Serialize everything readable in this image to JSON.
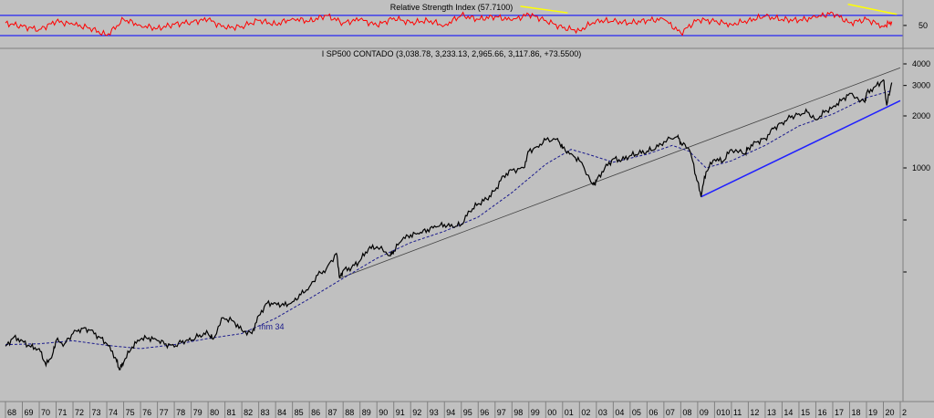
{
  "chart_data": [
    {
      "type": "line",
      "title": "Relative Strength Index (57.7100)",
      "yticks": [
        50
      ],
      "reference_levels": [
        70,
        30
      ],
      "ylim": [
        10,
        95
      ],
      "colors": {
        "line": "#ff0000",
        "levels": "#0000ff",
        "trend": "#ffff00"
      },
      "x": [
        1968,
        1969,
        1970,
        1971,
        1972,
        1973,
        1974,
        1975,
        1976,
        1977,
        1978,
        1979,
        1980,
        1981,
        1982,
        1983,
        1984,
        1985,
        1986,
        1987,
        1988,
        1989,
        1990,
        1991,
        1992,
        1993,
        1994,
        1995,
        1996,
        1997,
        1998,
        1999,
        2000,
        2001,
        2002,
        2003,
        2004,
        2005,
        2006,
        2007,
        2008,
        2009,
        2010,
        2011,
        2012,
        2013,
        2014,
        2015,
        2016,
        2017,
        2018,
        2019,
        2020,
        2020.5
      ],
      "values": [
        55,
        48,
        42,
        58,
        52,
        45,
        30,
        62,
        50,
        44,
        52,
        57,
        62,
        45,
        48,
        60,
        52,
        64,
        58,
        70,
        55,
        62,
        50,
        65,
        55,
        60,
        50,
        70,
        62,
        68,
        60,
        72,
        60,
        45,
        40,
        60,
        58,
        55,
        60,
        62,
        35,
        62,
        58,
        52,
        60,
        68,
        62,
        60,
        66,
        75,
        55,
        62,
        48,
        57.71
      ]
    },
    {
      "type": "line",
      "title": "I SP500 CONTADO (3,038.78, 3,233.13, 2,965.66, 3,117.86, +73.5500)",
      "yscale": "log",
      "yticks": [
        4000,
        3000,
        2000,
        1000
      ],
      "xtick_labels": [
        "68",
        "69",
        "70",
        "71",
        "72",
        "73",
        "74",
        "75",
        "76",
        "77",
        "78",
        "79",
        "80",
        "81",
        "82",
        "83",
        "84",
        "85",
        "86",
        "87",
        "88",
        "89",
        "90",
        "91",
        "92",
        "93",
        "94",
        "95",
        "96",
        "97",
        "98",
        "99",
        "00",
        "01",
        "02",
        "03",
        "04",
        "05",
        "06",
        "07",
        "08",
        "09",
        "010",
        "11",
        "12",
        "13",
        "14",
        "15",
        "16",
        "17",
        "18",
        "19",
        "20",
        "2"
      ],
      "annotations": [
        "mm 34"
      ],
      "colors": {
        "price": "#000000",
        "ma": "#1a1a8c",
        "support": "#2020ff",
        "resistance": "#404040"
      },
      "series": [
        {
          "name": "I SP500 CONTADO",
          "x": [
            1968,
            1968.5,
            1969,
            1969.5,
            1970,
            1970.4,
            1970.8,
            1971,
            1971.5,
            1972,
            1972.5,
            1973,
            1973.5,
            1974,
            1974.5,
            1974.75,
            1975,
            1975.5,
            1976,
            1976.5,
            1977,
            1977.5,
            1978,
            1978.5,
            1979,
            1979.5,
            1980,
            1980.3,
            1980.9,
            1981.5,
            1982,
            1982.6,
            1983,
            1983.5,
            1984,
            1984.5,
            1985,
            1985.5,
            1986,
            1986.5,
            1987,
            1987.6,
            1987.8,
            1988,
            1988.5,
            1989,
            1989.5,
            1990,
            1990.8,
            1991,
            1991.5,
            1992,
            1992.5,
            1993,
            1993.5,
            1994,
            1994.5,
            1995,
            1995.5,
            1996,
            1996.5,
            1997,
            1997.5,
            1998,
            1998.7,
            1999,
            1999.5,
            2000,
            2000.7,
            2001,
            2001.5,
            2002,
            2002.8,
            2003,
            2003.5,
            2004,
            2004.5,
            2005,
            2005.5,
            2006,
            2006.5,
            2007,
            2007.8,
            2008,
            2008.5,
            2008.9,
            2009.2,
            2009.5,
            2010,
            2010.5,
            2011,
            2011.8,
            2012,
            2012.5,
            2013,
            2013.5,
            2014,
            2014.5,
            2015,
            2015.5,
            2016,
            2016.5,
            2017,
            2017.5,
            2018,
            2018.9,
            2019,
            2019.5,
            2020,
            2020.2,
            2020.5
          ],
          "values": [
            93,
            105,
            100,
            92,
            90,
            72,
            84,
            100,
            96,
            110,
            118,
            115,
            106,
            96,
            80,
            68,
            75,
            92,
            102,
            104,
            100,
            96,
            92,
            100,
            100,
            108,
            110,
            102,
            136,
            130,
            115,
            110,
            140,
            165,
            165,
            160,
            168,
            185,
            205,
            240,
            260,
            320,
            230,
            255,
            265,
            290,
            340,
            350,
            310,
            330,
            385,
            410,
            415,
            440,
            455,
            470,
            455,
            470,
            560,
            620,
            660,
            740,
            900,
            970,
            1000,
            1250,
            1330,
            1450,
            1480,
            1300,
            1210,
            1100,
            800,
            840,
            1000,
            1130,
            1110,
            1180,
            1210,
            1250,
            1290,
            1420,
            1520,
            1400,
            1280,
            900,
            680,
            950,
            1120,
            1090,
            1280,
            1200,
            1310,
            1410,
            1480,
            1690,
            1830,
            1960,
            2060,
            2100,
            1900,
            2100,
            2250,
            2450,
            2700,
            2400,
            2700,
            2950,
            3230,
            2300,
            3117.86
          ]
        },
        {
          "name": "mm 34",
          "x": [
            1968,
            1970,
            1972,
            1974,
            1976,
            1978,
            1980,
            1982,
            1984,
            1986,
            1988,
            1990,
            1992,
            1994,
            1996,
            1998,
            2000,
            2001.5,
            2002.5,
            2004,
            2006,
            2007.5,
            2008.5,
            2009.5,
            2011,
            2013,
            2015,
            2017,
            2019,
            2020.5
          ],
          "values": [
            95,
            96,
            100,
            94,
            90,
            95,
            103,
            110,
            135,
            175,
            230,
            300,
            370,
            430,
            520,
            720,
            1050,
            1280,
            1200,
            1080,
            1200,
            1350,
            1250,
            1000,
            1100,
            1350,
            1750,
            2050,
            2550,
            2800
          ]
        }
      ],
      "trendlines": [
        {
          "name": "support",
          "from": [
            2009.2,
            680
          ],
          "to": [
            2021,
            2450
          ]
        },
        {
          "name": "resistance",
          "from": [
            1987.8,
            230
          ],
          "to": [
            2021,
            3800
          ]
        }
      ]
    }
  ]
}
